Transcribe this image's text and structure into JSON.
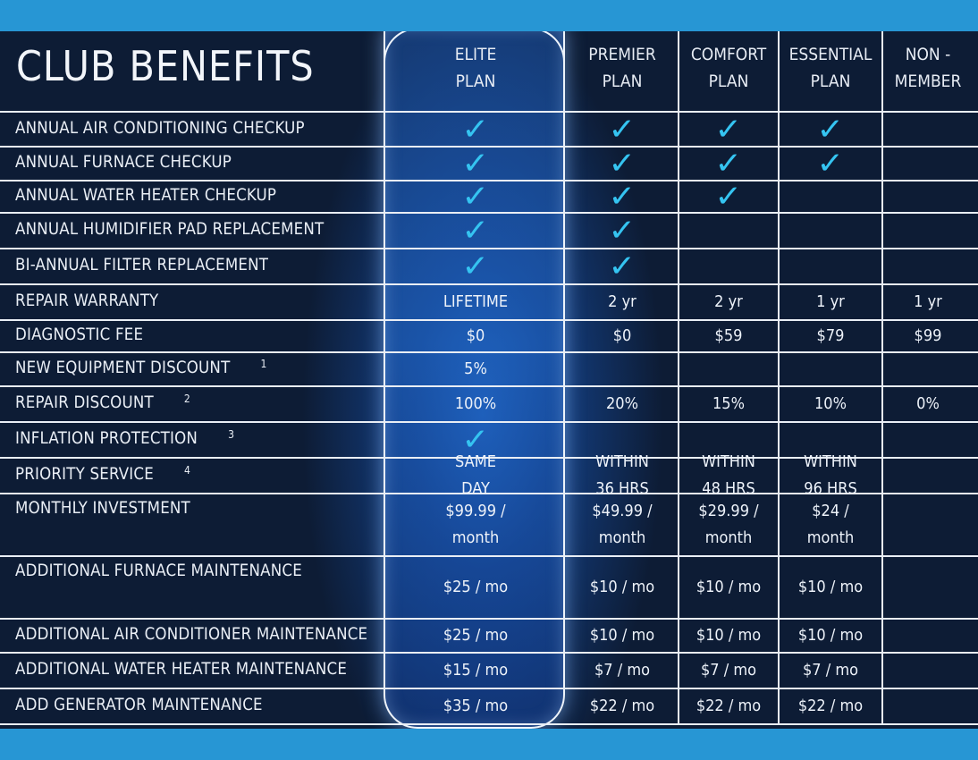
{
  "title": "CLUB BENEFITS",
  "columns": [
    {
      "line1": "ELITE",
      "line2": "PLAN"
    },
    {
      "line1": "PREMIER",
      "line2": "PLAN"
    },
    {
      "line1": "COMFORT",
      "line2": "PLAN"
    },
    {
      "line1": "ESSENTIAL",
      "line2": "PLAN"
    },
    {
      "line1": "NON -",
      "line2": "MEMBER"
    }
  ],
  "check_symbol": "✓",
  "check_color": "#35c4f1",
  "rows": [
    {
      "label": "ANNUAL AIR CONDITIONING CHECKUP",
      "note": "",
      "cells": [
        [
          "check"
        ],
        [
          "check"
        ],
        [
          "check"
        ],
        [
          "check"
        ],
        []
      ]
    },
    {
      "label": "ANNUAL FURNACE CHECKUP",
      "note": "",
      "cells": [
        [
          "check"
        ],
        [
          "check"
        ],
        [
          "check"
        ],
        [
          "check"
        ],
        []
      ]
    },
    {
      "label": "ANNUAL WATER HEATER CHECKUP",
      "note": "",
      "cells": [
        [
          "check"
        ],
        [
          "check"
        ],
        [
          "check"
        ],
        [],
        []
      ]
    },
    {
      "label": "ANNUAL HUMIDIFIER PAD REPLACEMENT",
      "note": "",
      "cells": [
        [
          "check"
        ],
        [
          "check"
        ],
        [],
        [],
        []
      ]
    },
    {
      "label": "BI-ANNUAL FILTER REPLACEMENT",
      "note": "",
      "cells": [
        [
          "check"
        ],
        [
          "check"
        ],
        [],
        [],
        []
      ]
    },
    {
      "label": "REPAIR WARRANTY",
      "note": "",
      "cells": [
        [
          "LIFETIME"
        ],
        [
          "2 yr"
        ],
        [
          "2 yr"
        ],
        [
          "1 yr"
        ],
        [
          "1 yr"
        ]
      ]
    },
    {
      "label": "DIAGNOSTIC FEE",
      "note": "",
      "cells": [
        [
          "$0"
        ],
        [
          "$0"
        ],
        [
          "$59"
        ],
        [
          "$79"
        ],
        [
          "$99"
        ]
      ]
    },
    {
      "label": "NEW EQUIPMENT DISCOUNT",
      "note": "1",
      "cells": [
        [
          "5%"
        ],
        [],
        [],
        [],
        []
      ]
    },
    {
      "label": "REPAIR DISCOUNT",
      "note": "2",
      "cells": [
        [
          "100%"
        ],
        [
          "20%"
        ],
        [
          "15%"
        ],
        [
          "10%"
        ],
        [
          "0%"
        ]
      ]
    },
    {
      "label": "INFLATION PROTECTION",
      "note": "3",
      "cells": [
        [
          "check"
        ],
        [],
        [],
        [],
        []
      ]
    },
    {
      "label": "PRIORITY SERVICE",
      "note": "4",
      "cells": [
        [
          "SAME",
          "DAY"
        ],
        [
          "WITHIN",
          "36 HRS"
        ],
        [
          "WITHIN",
          "48 HRS"
        ],
        [
          "WITHIN",
          "96 HRS"
        ],
        []
      ]
    },
    {
      "label": "MONTHLY INVESTMENT",
      "note": "",
      "cells": [
        [
          "$99.99 /",
          "month"
        ],
        [
          "$49.99 /",
          "month"
        ],
        [
          "$29.99 /",
          "month"
        ],
        [
          "$24 /",
          "month"
        ],
        []
      ]
    },
    {
      "label": "ADDITIONAL FURNACE MAINTENANCE",
      "note": "",
      "cells": [
        [
          "$25 / mo"
        ],
        [
          "$10 / mo"
        ],
        [
          "$10 / mo"
        ],
        [
          "$10 / mo"
        ],
        []
      ]
    },
    {
      "label": "ADDITIONAL AIR CONDITIONER MAINTENANCE",
      "note": "",
      "cells": [
        [
          "$25 / mo"
        ],
        [
          "$10 / mo"
        ],
        [
          "$10 / mo"
        ],
        [
          "$10 / mo"
        ],
        []
      ]
    },
    {
      "label": "ADDITIONAL WATER HEATER MAINTENANCE",
      "note": "",
      "cells": [
        [
          "$15 / mo"
        ],
        [
          "$7 / mo"
        ],
        [
          "$7 / mo"
        ],
        [
          "$7 / mo"
        ],
        []
      ]
    },
    {
      "label": "ADD GENERATOR MAINTENANCE",
      "note": "",
      "cells": [
        [
          "$35 / mo"
        ],
        [
          "$22 / mo"
        ],
        [
          "$22 / mo"
        ],
        [
          "$22 / mo"
        ],
        []
      ]
    }
  ]
}
